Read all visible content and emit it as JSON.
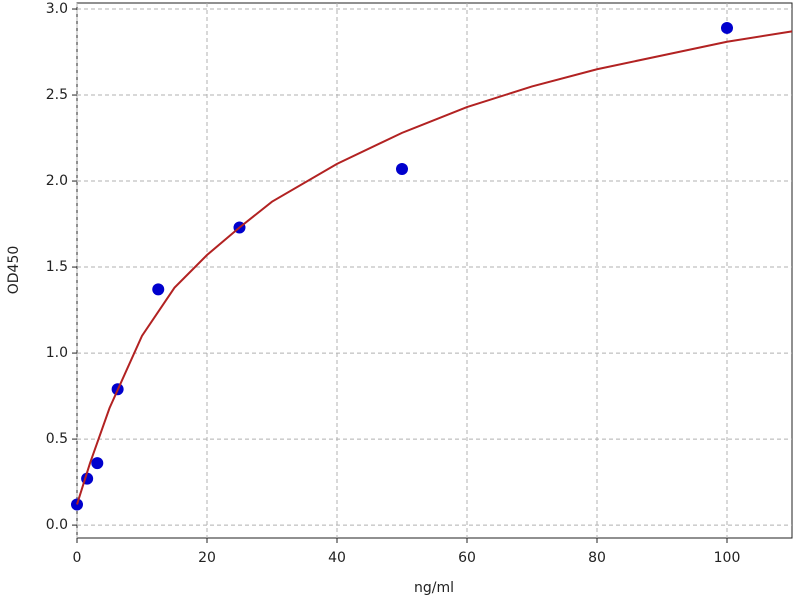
{
  "chart_data": {
    "type": "scatter",
    "xlabel": "ng/ml",
    "ylabel": "OD450",
    "xlim": [
      0,
      110
    ],
    "ylim": [
      -0.075,
      3.035
    ],
    "xticks": [
      0,
      20,
      40,
      60,
      80,
      100
    ],
    "yticks": [
      {
        "value": 0,
        "label": "0.0"
      },
      0.5,
      {
        "value": 1,
        "label": "1.0"
      },
      1.5,
      {
        "value": 2,
        "label": "2.0"
      },
      2.5,
      {
        "value": 3,
        "label": "3.0"
      }
    ],
    "grid": true,
    "series": [
      {
        "style": "markers",
        "color": "#0000cd",
        "x": [
          0,
          1.56,
          3.12,
          6.25,
          12.5,
          25,
          50,
          100
        ],
        "values": [
          0.12,
          0.27,
          0.36,
          0.79,
          1.37,
          1.73,
          2.07,
          2.89
        ]
      },
      {
        "style": "line",
        "color": "#b22222",
        "x": [
          0,
          2,
          5,
          10,
          15,
          20,
          25,
          30,
          40,
          50,
          60,
          70,
          80,
          90,
          100,
          110
        ],
        "values": [
          0.12,
          0.36,
          0.68,
          1.1,
          1.38,
          1.57,
          1.73,
          1.88,
          2.1,
          2.28,
          2.43,
          2.55,
          2.65,
          2.73,
          2.81,
          2.87
        ]
      }
    ]
  }
}
